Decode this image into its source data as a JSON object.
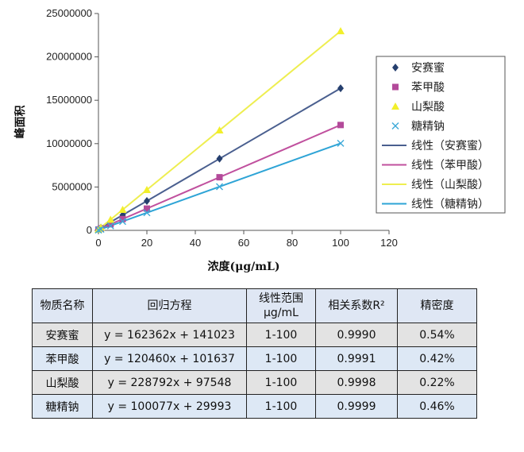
{
  "chart_data": {
    "type": "scatter",
    "xlabel": "浓度(μg/mL)",
    "ylabel": "峰面积",
    "xlim": [
      0,
      120
    ],
    "ylim": [
      0,
      25000000
    ],
    "x_ticks": [
      "0",
      "20",
      "40",
      "60",
      "80",
      "100",
      "120"
    ],
    "y_ticks": [
      "0",
      "5000000",
      "10000000",
      "15000000",
      "20000000",
      "25000000"
    ],
    "grid": false,
    "legend_position": "right",
    "series": [
      {
        "name": "安赛蜜",
        "marker": "diamond",
        "color": "#253f6e",
        "x": [
          0,
          1,
          5,
          10,
          20,
          50,
          100
        ],
        "y": [
          141023,
          303385,
          952833,
          1764643,
          3388263,
          8259123,
          16377223
        ]
      },
      {
        "name": "苯甲酸",
        "marker": "square",
        "color": "#b34a9a",
        "x": [
          0,
          1,
          5,
          10,
          20,
          50,
          100
        ],
        "y": [
          101637,
          222097,
          703937,
          1306237,
          2510837,
          6124637,
          12147637
        ]
      },
      {
        "name": "山梨酸",
        "marker": "triangle",
        "color": "#f2ef2a",
        "x": [
          0,
          1,
          5,
          10,
          20,
          50,
          100
        ],
        "y": [
          97548,
          326340,
          1241508,
          2385468,
          4673388,
          11537148,
          22976748
        ]
      },
      {
        "name": "糖精钠",
        "marker": "x",
        "color": "#3eaad8",
        "x": [
          0,
          1,
          5,
          10,
          20,
          50,
          100
        ],
        "y": [
          29993,
          130070,
          530378,
          1030763,
          2031533,
          5033843,
          10037693
        ]
      }
    ],
    "fit_lines": [
      {
        "name": "线性（安赛蜜）",
        "slope": 162362,
        "intercept": 141023,
        "color": "#4a5f8f"
      },
      {
        "name": "线性（苯甲酸）",
        "slope": 120460,
        "intercept": 101637,
        "color": "#c0509e"
      },
      {
        "name": "线性（山梨酸）",
        "slope": 228792,
        "intercept": 97548,
        "color": "#eeee50"
      },
      {
        "name": "线性（糖精钠）",
        "slope": 100077,
        "intercept": 29993,
        "color": "#2ea4d6"
      }
    ]
  },
  "table": {
    "headers": [
      "物质名称",
      "回归方程",
      "线性范围\nμg/mL",
      "相关系数R²",
      "精密度"
    ],
    "rows": [
      [
        "安赛蜜",
        "y = 162362x + 141023",
        "1-100",
        "0.9990",
        "0.54%"
      ],
      [
        "苯甲酸",
        "y = 120460x + 101637",
        "1-100",
        "0.9991",
        "0.42%"
      ],
      [
        "山梨酸",
        "y = 228792x + 97548",
        "1-100",
        "0.9998",
        "0.22%"
      ],
      [
        "糖精钠",
        "y = 100077x + 29993",
        "1-100",
        "0.9999",
        "0.46%"
      ]
    ]
  }
}
